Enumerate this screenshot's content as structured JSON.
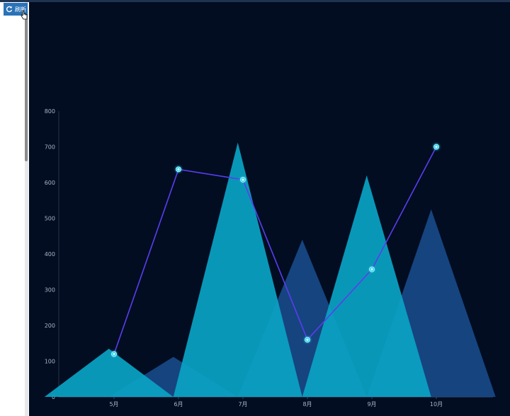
{
  "toolbar": {
    "refresh_label": "刷新",
    "refresh_icon": "refresh-icon"
  },
  "colors": {
    "background": "#020d22",
    "peak_teal": "#0aa3c4",
    "peak_blue": "#1a4f8f",
    "line": "#5a3df0",
    "point": "#20d6f0"
  },
  "chart_data": {
    "type": "line",
    "categories": [
      "5月",
      "6月",
      "7月",
      "8月",
      "9月",
      "10月"
    ],
    "ylim": [
      0,
      800
    ],
    "yticks": [
      0,
      100,
      200,
      300,
      400,
      500,
      600,
      700,
      800
    ],
    "series": [
      {
        "type": "pictorial-peak",
        "values": [
          135,
          712,
          620
        ],
        "x": [
          0.92,
          2.92,
          4.92
        ],
        "color": "teal"
      },
      {
        "type": "pictorial-peak",
        "values": [
          112,
          440,
          525
        ],
        "x": [
          1.92,
          3.92,
          5.92
        ],
        "color": "blue"
      },
      {
        "type": "line",
        "values": [
          120,
          637,
          608,
          160,
          357,
          700
        ]
      }
    ],
    "grid": false
  }
}
